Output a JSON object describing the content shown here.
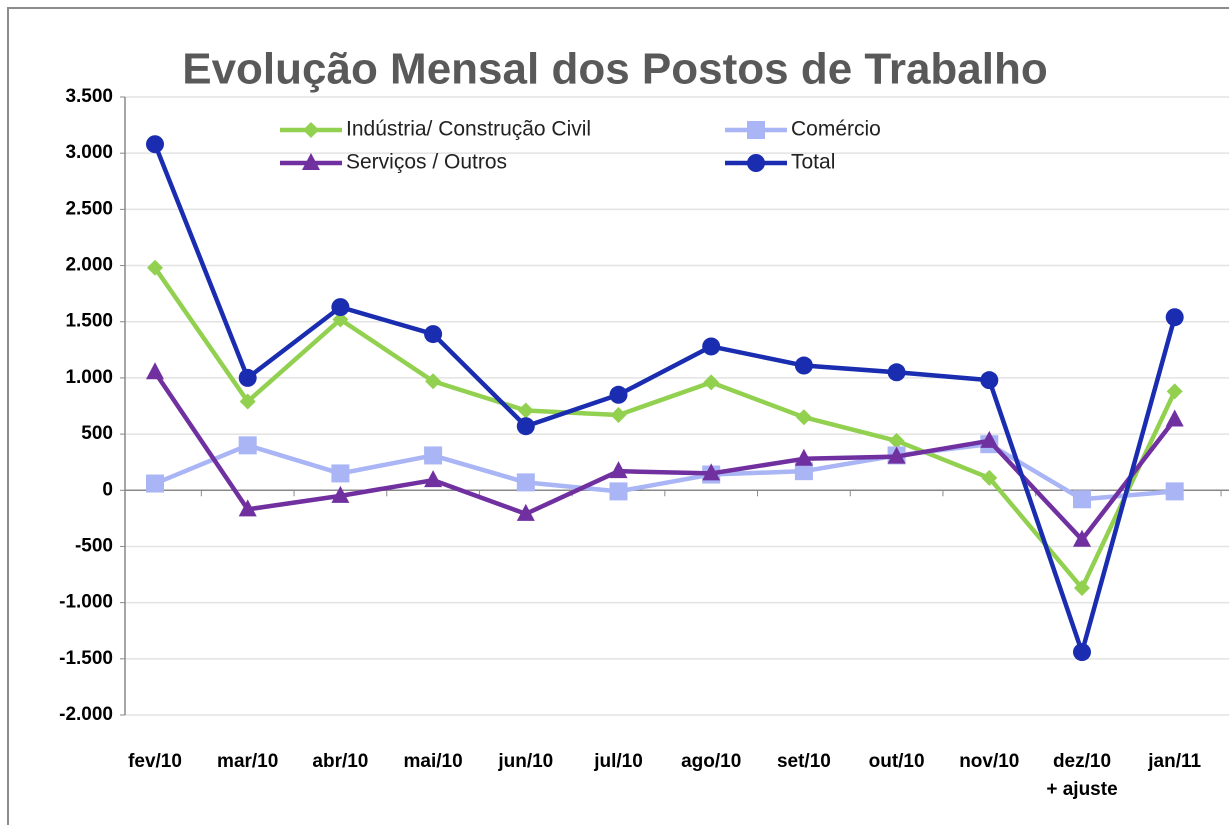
{
  "chart_data": {
    "type": "line",
    "title": "Evolução Mensal dos Postos de Trabalho",
    "categories": [
      "fev/10",
      "mar/10",
      "abr/10",
      "mai/10",
      "jun/10",
      "jul/10",
      "ago/10",
      "set/10",
      "out/10",
      "nov/10",
      "dez/10\n+ ajuste",
      "jan/11"
    ],
    "series": [
      {
        "name": "Indústria/ Construção Civil",
        "color": "#92d050",
        "marker": "diamond",
        "values": [
          1980,
          790,
          1520,
          970,
          710,
          670,
          960,
          650,
          440,
          110,
          -870,
          880
        ]
      },
      {
        "name": "Comércio",
        "color": "#a9b5f5",
        "marker": "square",
        "values": [
          60,
          400,
          150,
          310,
          70,
          -10,
          140,
          170,
          310,
          410,
          -80,
          -10
        ]
      },
      {
        "name": "Serviços / Outros",
        "color": "#7030a0",
        "marker": "triangle",
        "values": [
          1050,
          -170,
          -50,
          90,
          -210,
          170,
          150,
          280,
          300,
          440,
          -440,
          630
        ]
      },
      {
        "name": "Total",
        "color": "#1a2db0",
        "marker": "circle",
        "values": [
          3080,
          1000,
          1630,
          1390,
          570,
          850,
          1280,
          1110,
          1050,
          980,
          -1440,
          1540
        ]
      }
    ],
    "ylim": [
      -2000,
      3500
    ],
    "yticks": [
      {
        "value": -2000,
        "label": "-2.000"
      },
      {
        "value": -1500,
        "label": "-1.500"
      },
      {
        "value": -1000,
        "label": "-1.000"
      },
      -500,
      0,
      500,
      {
        "value": 1000,
        "label": "1.000"
      },
      {
        "value": 1500,
        "label": "1.500"
      },
      {
        "value": 2000,
        "label": "2.000"
      },
      {
        "value": 2500,
        "label": "2.500"
      },
      {
        "value": 3000,
        "label": "3.000"
      },
      {
        "value": 3500,
        "label": "3.500"
      }
    ],
    "grid": true
  }
}
